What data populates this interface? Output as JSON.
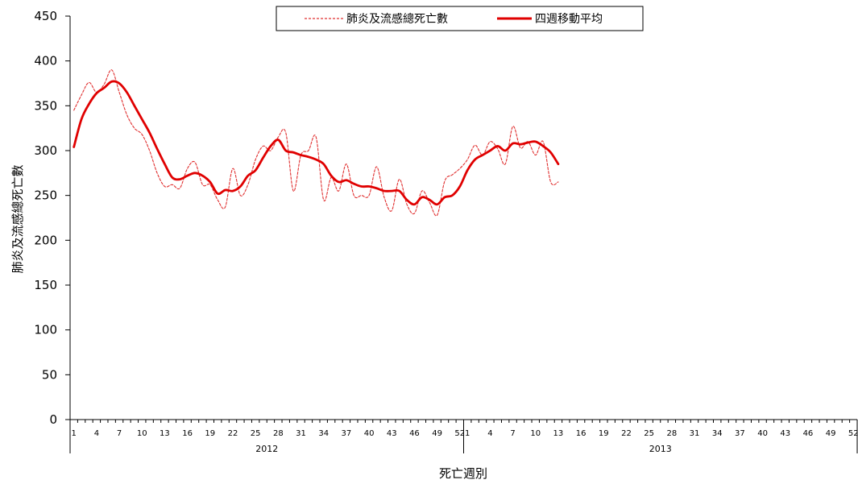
{
  "chart_data": {
    "type": "line",
    "title": "",
    "xlabel": "死亡週別",
    "ylabel": "肺炎及流感總死亡數",
    "ylim": [
      0,
      450
    ],
    "yticks": [
      "0",
      "50",
      "100",
      "150",
      "200",
      "250",
      "300",
      "350",
      "400",
      "450"
    ],
    "x_tick_labels": [
      "1",
      "4",
      "7",
      "10",
      "13",
      "16",
      "19",
      "22",
      "25",
      "28",
      "31",
      "34",
      "37",
      "40",
      "43",
      "46",
      "49",
      "52",
      "1",
      "4",
      "7",
      "10",
      "13",
      "16",
      "19",
      "22",
      "25",
      "28",
      "31",
      "34",
      "37",
      "40",
      "43",
      "46",
      "49",
      "52"
    ],
    "year_groups": [
      {
        "label": "2012",
        "weeks": 52
      },
      {
        "label": "2013",
        "weeks": 52
      }
    ],
    "legend_position": "top-center",
    "series": [
      {
        "name": "肺炎及流感總死亡數",
        "style": "dashed",
        "color": "#e03030",
        "values": [
          345,
          362,
          376,
          365,
          374,
          390,
          365,
          340,
          325,
          318,
          300,
          275,
          260,
          262,
          258,
          280,
          287,
          262,
          262,
          245,
          237,
          280,
          250,
          262,
          290,
          305,
          300,
          315,
          320,
          255,
          295,
          300,
          315,
          245,
          270,
          255,
          285,
          250,
          250,
          250,
          282,
          248,
          233,
          268,
          240,
          230,
          255,
          242,
          228,
          266,
          273,
          280,
          290,
          306,
          295,
          310,
          302,
          285,
          327,
          303,
          310,
          295,
          310,
          265,
          265
        ]
      },
      {
        "name": "四週移動平均",
        "style": "solid",
        "color": "#e00000",
        "values": [
          304,
          335,
          352,
          364,
          370,
          377,
          375,
          365,
          350,
          335,
          320,
          302,
          285,
          270,
          268,
          272,
          275,
          272,
          265,
          252,
          256,
          255,
          260,
          272,
          278,
          292,
          305,
          312,
          300,
          298,
          295,
          293,
          290,
          285,
          272,
          265,
          267,
          263,
          260,
          260,
          258,
          255,
          255,
          255,
          245,
          240,
          248,
          245,
          240,
          248,
          250,
          260,
          278,
          290,
          295,
          300,
          305,
          300,
          308,
          307,
          309,
          310,
          305,
          298,
          285
        ]
      }
    ]
  }
}
